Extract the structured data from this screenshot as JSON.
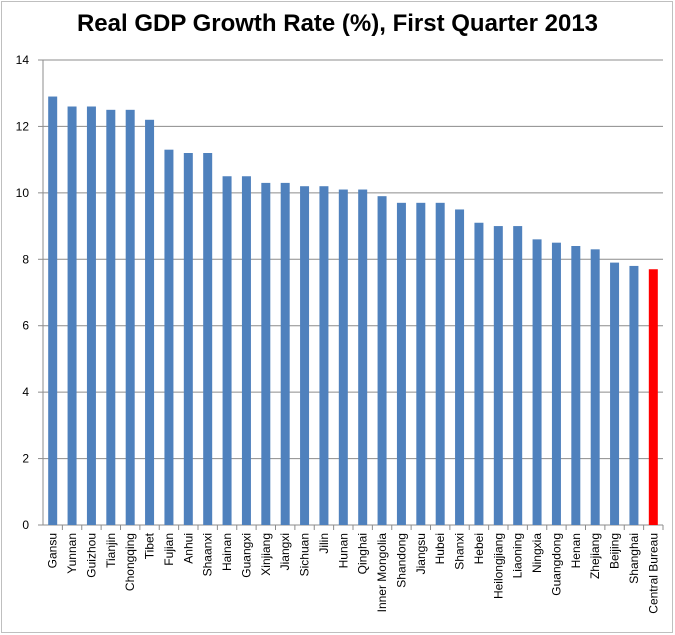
{
  "chart_data": {
    "type": "bar",
    "title": "Real GDP Growth Rate (%), First Quarter 2013",
    "xlabel": "",
    "ylabel": "",
    "ylim": [
      0,
      14
    ],
    "yticks": [
      0,
      2,
      4,
      6,
      8,
      10,
      12,
      14
    ],
    "grid": true,
    "legend": "none",
    "categories": [
      "Gansu",
      "Yunnan",
      "Guizhou",
      "Tianjin",
      "Chongqing",
      "Tibet",
      "Fujian",
      "Anhui",
      "Shaanxi",
      "Hainan",
      "Guangxi",
      "Xinjiang",
      "Jiangxi",
      "Sichuan",
      "Jilin",
      "Hunan",
      "Qinghai",
      "Inner Mongolia",
      "Shandong",
      "Jiangsu",
      "Hubei",
      "Shanxi",
      "Hebei",
      "Heilongjiang",
      "Liaoning",
      "Ningxia",
      "Guangdong",
      "Henan",
      "Zhejiang",
      "Beijing",
      "Shanghai",
      "Central Bureau"
    ],
    "values": [
      12.9,
      12.6,
      12.6,
      12.5,
      12.5,
      12.2,
      11.3,
      11.2,
      11.2,
      10.5,
      10.5,
      10.3,
      10.3,
      10.2,
      10.2,
      10.1,
      10.1,
      9.9,
      9.7,
      9.7,
      9.7,
      9.5,
      9.1,
      9.0,
      9.0,
      8.6,
      8.5,
      8.4,
      8.3,
      7.9,
      7.8,
      7.7
    ],
    "colors": {
      "bar": "#4f81bd",
      "highlight": "#ff0000",
      "highlight_category": "Central Bureau",
      "grid": "#8c8c8c",
      "axis": "#8c8c8c"
    }
  }
}
